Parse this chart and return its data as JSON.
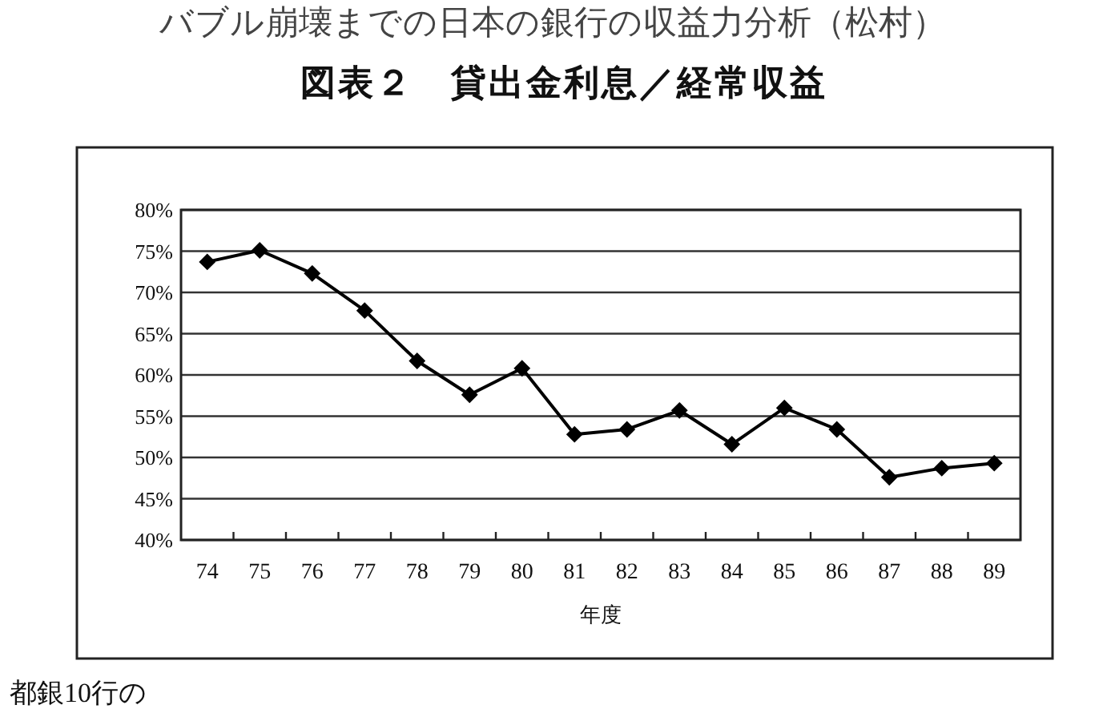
{
  "chart_data": {
    "type": "line",
    "title": "図表２　貸出金利息／経常収益",
    "xlabel": "年度",
    "categories": [
      "74",
      "75",
      "76",
      "77",
      "78",
      "79",
      "80",
      "81",
      "82",
      "83",
      "84",
      "85",
      "86",
      "87",
      "88",
      "89"
    ],
    "series": [
      {
        "color": "#000000",
        "values": [
          73.7,
          75.1,
          72.3,
          67.8,
          61.7,
          57.6,
          60.8,
          52.8,
          53.4,
          55.7,
          51.6,
          56.0,
          53.4,
          47.6,
          48.7,
          49.3
        ]
      }
    ],
    "ylim": [
      40,
      80
    ],
    "yticks": [
      {
        "value": 40,
        "label": "40%"
      },
      {
        "value": 45,
        "label": "45%"
      },
      {
        "value": 50,
        "label": "50%"
      },
      {
        "value": 55,
        "label": "55%"
      },
      {
        "value": 60,
        "label": "60%"
      },
      {
        "value": 65,
        "label": "65%"
      },
      {
        "value": 70,
        "label": "70%"
      },
      {
        "value": 75,
        "label": "75%"
      },
      {
        "value": 80,
        "label": "80%"
      }
    ],
    "grid": "y",
    "marker": "diamond",
    "line_style": "solid",
    "annotations": [
      "バブル崩壊までの日本の銀行の収益力分析（松村）",
      "都銀10行の"
    ]
  }
}
